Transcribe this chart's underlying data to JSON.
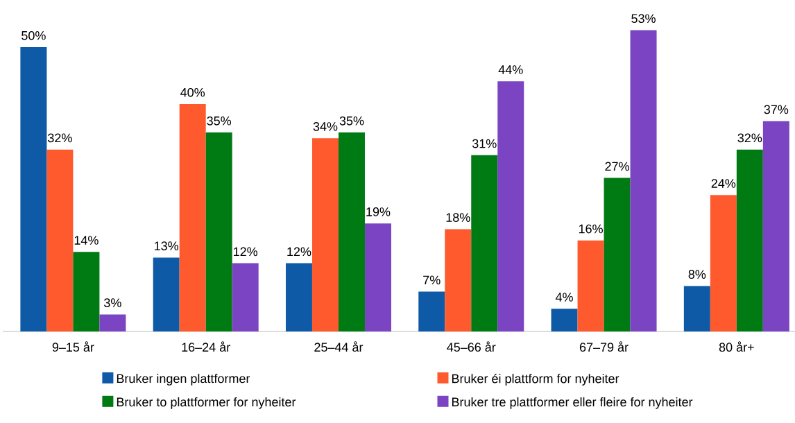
{
  "chart_data": {
    "type": "bar",
    "categories": [
      "9–15 år",
      "16–24 år",
      "25–44 år",
      "45–66 år",
      "67–79 år",
      "80 år+"
    ],
    "series": [
      {
        "name": "Bruker ingen plattformer",
        "color": "#0e5aa7",
        "values": [
          50,
          13,
          12,
          7,
          4,
          8
        ],
        "value_labels": [
          "50%",
          "13%",
          "12%",
          "7%",
          "4%",
          "8%"
        ]
      },
      {
        "name": "Bruker éi plattform for nyheiter",
        "color": "#ff5a2d",
        "values": [
          32,
          40,
          34,
          18,
          16,
          24
        ],
        "value_labels": [
          "32%",
          "40%",
          "34%",
          "18%",
          "16%",
          "24%"
        ]
      },
      {
        "name": "Bruker to plattformer for nyheiter",
        "color": "#007a13",
        "values": [
          14,
          35,
          35,
          31,
          27,
          32
        ],
        "value_labels": [
          "14%",
          "35%",
          "35%",
          "31%",
          "27%",
          "32%"
        ]
      },
      {
        "name": "Bruker tre plattformer eller fleire for nyheiter",
        "color": "#7b44c2",
        "values": [
          3,
          12,
          19,
          44,
          53,
          37
        ],
        "value_labels": [
          "3%",
          "12%",
          "19%",
          "44%",
          "53%",
          "37%"
        ]
      }
    ],
    "legend": "bottom",
    "grid": false
  }
}
